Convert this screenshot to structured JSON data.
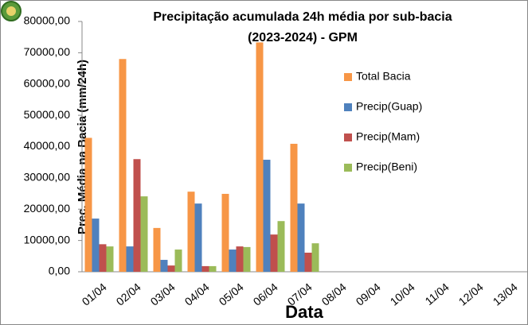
{
  "chart_data": {
    "type": "bar",
    "title": [
      "Precipitação acumulada 24h média por sub-bacia",
      "(2023-2024) - GPM"
    ],
    "x_label": "Data",
    "y_label": "Prec. Média na Bacia (mm/24h)",
    "categories": [
      "01/04",
      "02/04",
      "03/04",
      "04/04",
      "05/04",
      "06/04",
      "07/04",
      "08/04",
      "09/04",
      "10/04",
      "11/04",
      "12/04",
      "13/04"
    ],
    "series": [
      {
        "name": "Total Bacia",
        "color": "#f79646",
        "values": [
          42800,
          68000,
          14000,
          25600,
          24900,
          73300,
          40900,
          null,
          null,
          null,
          null,
          null,
          null
        ]
      },
      {
        "name": "Precip(Guap)",
        "color": "#4f81bd",
        "values": [
          17000,
          8100,
          3800,
          21800,
          7100,
          35800,
          21800,
          null,
          null,
          null,
          null,
          null,
          null
        ]
      },
      {
        "name": "Precip(Mam)",
        "color": "#c0504d",
        "values": [
          8800,
          36000,
          2000,
          1800,
          8100,
          11900,
          6100,
          null,
          null,
          null,
          null,
          null,
          null
        ]
      },
      {
        "name": "Precip(Beni)",
        "color": "#9bbb59",
        "values": [
          8100,
          24100,
          7100,
          1800,
          7900,
          16200,
          9100,
          null,
          null,
          null,
          null,
          null,
          null
        ]
      }
    ],
    "ylim": [
      0,
      80000
    ],
    "yticks": [
      {
        "value": 0,
        "label": "0,00"
      },
      {
        "value": 10000,
        "label": "10000,00"
      },
      {
        "value": 20000,
        "label": "20000,00"
      },
      {
        "value": 30000,
        "label": "30000,00"
      },
      {
        "value": 40000,
        "label": "40000,00"
      },
      {
        "value": 50000,
        "label": "50000,00"
      },
      {
        "value": 60000,
        "label": "60000,00"
      },
      {
        "value": 70000,
        "label": "70000,00"
      },
      {
        "value": 80000,
        "label": "80000,00"
      }
    ],
    "legend": "right"
  }
}
